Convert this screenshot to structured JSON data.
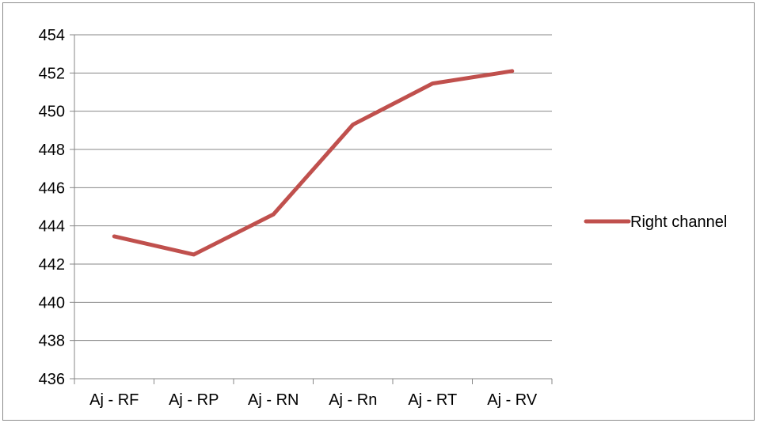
{
  "chart_data": {
    "type": "line",
    "categories": [
      "Aj - RF",
      "Aj - RP",
      "Aj - RN",
      "Aj - Rn",
      "Aj - RT",
      "Aj - RV"
    ],
    "series": [
      {
        "name": "Right channel",
        "values": [
          443.45,
          442.5,
          444.6,
          449.3,
          451.45,
          452.1
        ],
        "color": "#c0504d"
      }
    ],
    "ylim": [
      436,
      454
    ],
    "ytick_step": 2,
    "yticks": [
      "436",
      "438",
      "440",
      "442",
      "444",
      "446",
      "448",
      "450",
      "452",
      "454"
    ],
    "grid": true,
    "legend_position": "right",
    "gridline_color": "#878787",
    "axis_color": "#878787"
  }
}
